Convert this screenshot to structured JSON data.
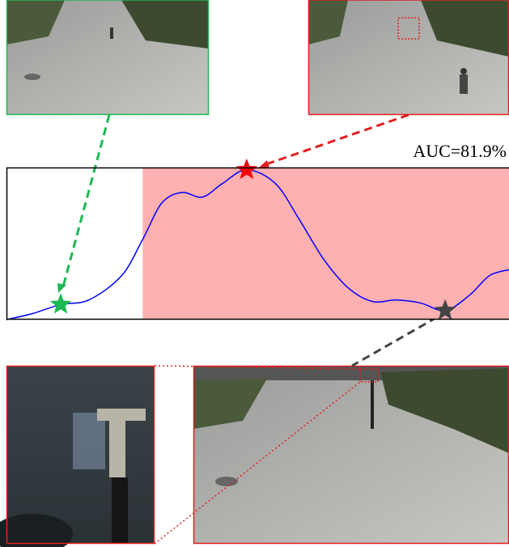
{
  "chart_data": {
    "type": "line",
    "annotation": "AUC=81.9%",
    "x": [
      0,
      5.2,
      10.8,
      16.4,
      22.9,
      27.1,
      30.9,
      34.9,
      39.0,
      43.0,
      47.8,
      53.5,
      58.3,
      63.1,
      68.0,
      72.8,
      77.6,
      82.4,
      87.3,
      92.1,
      96.1,
      100
    ],
    "values": [
      0,
      0.04,
      0.1,
      0.13,
      0.29,
      0.53,
      0.77,
      0.84,
      0.81,
      0.9,
      0.99,
      0.9,
      0.66,
      0.4,
      0.21,
      0.12,
      0.13,
      0.11,
      0.06,
      0.16,
      0.29,
      0.33
    ],
    "color": "#0000ff",
    "xlim": [
      0,
      100
    ],
    "ylim": [
      0,
      1
    ],
    "anomaly_span": [
      27.1,
      100
    ],
    "anomaly_color": "#ffb0b0",
    "markers": [
      {
        "index": 2,
        "color": "#1db954"
      },
      {
        "index": 10,
        "color": "#ff0000"
      },
      {
        "index": 18,
        "color": "#444444"
      }
    ]
  }
}
